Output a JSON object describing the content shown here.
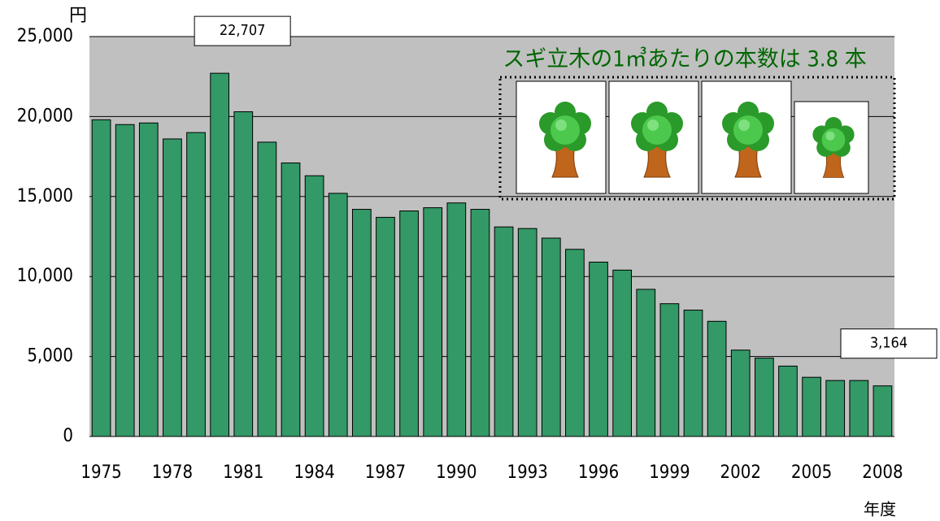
{
  "chart_data": {
    "type": "bar",
    "y_unit_label": "円",
    "x_axis_label": "年度",
    "annotation": "スギ立木の1㎥あたりの本数は 3.8 本",
    "categories": [
      "1975",
      null,
      null,
      "1978",
      null,
      null,
      "1981",
      null,
      null,
      "1984",
      null,
      null,
      "1987",
      null,
      null,
      "1990",
      null,
      null,
      "1993",
      null,
      null,
      "1996",
      null,
      null,
      "1999",
      null,
      null,
      "2002",
      null,
      null,
      "2005",
      null,
      null,
      "2008"
    ],
    "values": [
      19800,
      19500,
      19600,
      18600,
      19000,
      22707,
      20300,
      18400,
      17100,
      16300,
      15200,
      14200,
      13700,
      14100,
      14300,
      14600,
      14200,
      13100,
      13000,
      12400,
      11700,
      10900,
      10400,
      9200,
      8300,
      7900,
      7200,
      5400,
      4900,
      4400,
      3700,
      3500,
      3500,
      3164
    ],
    "value_labels": [
      null,
      null,
      null,
      null,
      null,
      "22,707",
      null,
      null,
      null,
      null,
      null,
      null,
      null,
      null,
      null,
      null,
      null,
      null,
      null,
      null,
      null,
      null,
      null,
      null,
      null,
      null,
      null,
      null,
      null,
      null,
      null,
      null,
      null,
      "3,164"
    ],
    "color": "#339966",
    "ylim": [
      0,
      25000
    ],
    "yticks": [
      0,
      {
        "value": 5000,
        "label": "5,000"
      },
      {
        "value": 10000,
        "label": "10,000"
      },
      {
        "value": 15000,
        "label": "15,000"
      },
      {
        "value": 20000,
        "label": "20,000"
      },
      {
        "value": 25000,
        "label": "25,000"
      }
    ],
    "grid": true
  }
}
